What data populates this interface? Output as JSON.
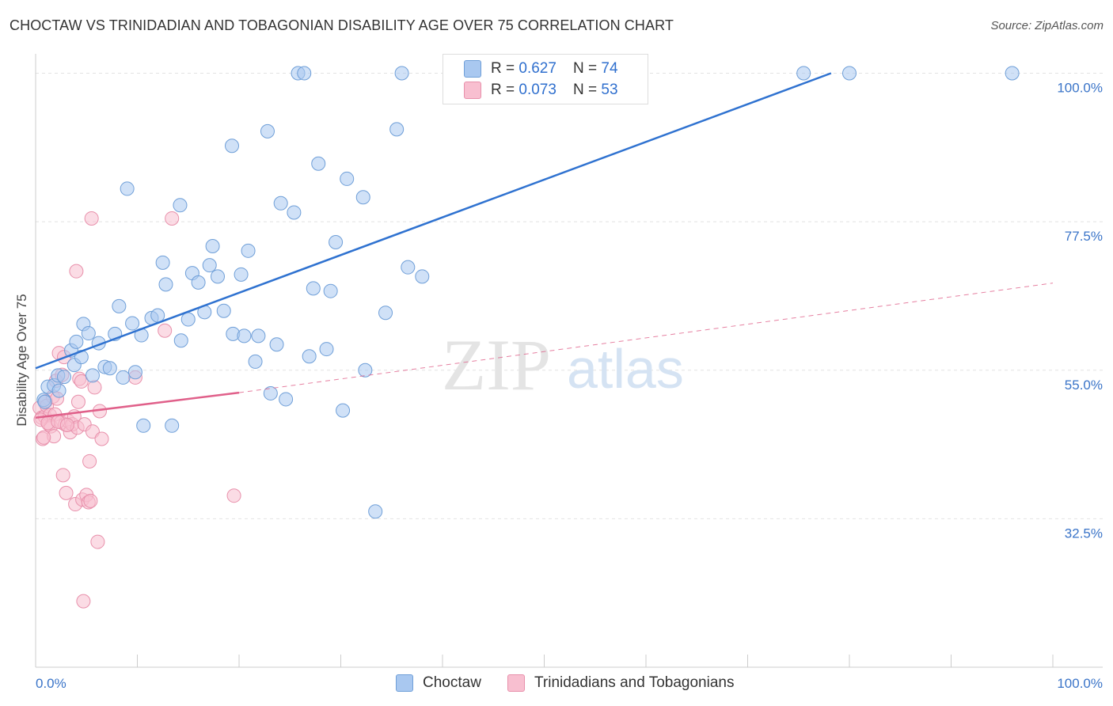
{
  "title": "CHOCTAW VS TRINIDADIAN AND TOBAGONIAN DISABILITY AGE OVER 75 CORRELATION CHART",
  "source": "Source: ZipAtlas.com",
  "watermark": {
    "zip": "ZIP",
    "atlas": "atlas"
  },
  "legend": {
    "choctaw": {
      "r_label": "R = ",
      "r_value": "0.627",
      "n_label": "N = ",
      "n_value": "74"
    },
    "trinidad": {
      "r_label": "R = ",
      "r_value": "0.073",
      "n_label": "N = ",
      "n_value": "53"
    }
  },
  "bottom_legend": {
    "choctaw": "Choctaw",
    "trinidad": "Trinidadians and Tobagonians"
  },
  "colors": {
    "choctaw_fill": "#a9c8f0",
    "choctaw_stroke": "#6f9fd8",
    "choctaw_line": "#2f72d0",
    "trinidad_fill": "#f8bfd0",
    "trinidad_stroke": "#e890ab",
    "trinidad_line": "#e0608a",
    "axis_text": "#3a74c8",
    "grid": "#e2e2e2"
  },
  "chart_data": {
    "type": "scatter",
    "title": "CHOCTAW VS TRINIDADIAN AND TOBAGONIAN DISABILITY AGE OVER 75 CORRELATION CHART",
    "xlabel": "",
    "ylabel": "Disability Age Over 75",
    "xlim": [
      0,
      100
    ],
    "ylim": [
      10,
      101.5
    ],
    "x_tick_labels": [
      "0.0%",
      "100.0%"
    ],
    "y_ticks": [
      32.5,
      55.0,
      77.5,
      100.0
    ],
    "y_tick_labels": [
      "32.5%",
      "55.0%",
      "77.5%",
      "100.0%"
    ],
    "grid": true,
    "series": [
      {
        "name": "Choctaw",
        "points": [
          [
            0.8,
            50.5
          ],
          [
            1.2,
            52.5
          ],
          [
            1.8,
            52.7
          ],
          [
            2.2,
            54.2
          ],
          [
            2.3,
            51.9
          ],
          [
            2.8,
            54.0
          ],
          [
            3.5,
            58.0
          ],
          [
            3.8,
            55.8
          ],
          [
            4.0,
            59.3
          ],
          [
            4.5,
            57.0
          ],
          [
            4.7,
            62.0
          ],
          [
            5.2,
            60.6
          ],
          [
            5.6,
            54.2
          ],
          [
            6.2,
            59.1
          ],
          [
            6.8,
            55.5
          ],
          [
            7.3,
            55.3
          ],
          [
            7.8,
            60.5
          ],
          [
            8.2,
            64.7
          ],
          [
            8.6,
            53.9
          ],
          [
            9.0,
            82.5
          ],
          [
            9.5,
            62.1
          ],
          [
            9.8,
            54.7
          ],
          [
            10.4,
            60.3
          ],
          [
            10.6,
            46.6
          ],
          [
            11.4,
            62.9
          ],
          [
            12.0,
            63.3
          ],
          [
            12.5,
            71.3
          ],
          [
            12.8,
            68.0
          ],
          [
            13.4,
            46.6
          ],
          [
            14.2,
            80.0
          ],
          [
            14.3,
            59.5
          ],
          [
            15.0,
            62.7
          ],
          [
            15.4,
            69.7
          ],
          [
            16.0,
            68.3
          ],
          [
            16.6,
            63.8
          ],
          [
            17.1,
            70.9
          ],
          [
            17.4,
            73.8
          ],
          [
            17.9,
            69.2
          ],
          [
            18.5,
            64.0
          ],
          [
            19.3,
            89.0
          ],
          [
            19.4,
            60.5
          ],
          [
            20.2,
            69.5
          ],
          [
            20.5,
            60.2
          ],
          [
            20.9,
            73.1
          ],
          [
            21.6,
            56.3
          ],
          [
            21.9,
            60.2
          ],
          [
            22.8,
            91.2
          ],
          [
            23.1,
            51.5
          ],
          [
            23.7,
            58.9
          ],
          [
            24.1,
            80.3
          ],
          [
            24.6,
            50.6
          ],
          [
            25.4,
            78.9
          ],
          [
            25.8,
            100.0
          ],
          [
            26.4,
            100.0
          ],
          [
            26.9,
            57.1
          ],
          [
            27.3,
            67.4
          ],
          [
            27.8,
            86.3
          ],
          [
            28.6,
            58.2
          ],
          [
            29.0,
            67.0
          ],
          [
            29.5,
            74.4
          ],
          [
            30.2,
            48.9
          ],
          [
            30.6,
            84.0
          ],
          [
            32.2,
            81.2
          ],
          [
            32.4,
            55.0
          ],
          [
            33.4,
            33.6
          ],
          [
            34.4,
            63.7
          ],
          [
            35.5,
            91.5
          ],
          [
            36.0,
            100.0
          ],
          [
            36.6,
            70.6
          ],
          [
            38.0,
            69.2
          ],
          [
            75.5,
            100.0
          ],
          [
            80.0,
            100.0
          ],
          [
            96.0,
            100.0
          ],
          [
            0.9,
            50.2
          ]
        ],
        "trend": {
          "x0": 0,
          "y0": 55.3,
          "x1": 78.2,
          "y1": 100.0,
          "style": "solid"
        }
      },
      {
        "name": "Trinidadians and Tobagonians",
        "points": [
          [
            0.4,
            49.3
          ],
          [
            0.6,
            47.8
          ],
          [
            0.7,
            44.6
          ],
          [
            0.9,
            48.0
          ],
          [
            1.0,
            50.3
          ],
          [
            1.1,
            49.6
          ],
          [
            1.3,
            46.8
          ],
          [
            1.4,
            48.2
          ],
          [
            1.5,
            46.5
          ],
          [
            1.7,
            51.0
          ],
          [
            1.8,
            45.0
          ],
          [
            1.9,
            48.3
          ],
          [
            2.0,
            53.4
          ],
          [
            2.1,
            50.7
          ],
          [
            2.3,
            57.6
          ],
          [
            2.5,
            47.1
          ],
          [
            2.6,
            54.3
          ],
          [
            2.7,
            39.1
          ],
          [
            2.8,
            57.0
          ],
          [
            2.9,
            46.8
          ],
          [
            3.0,
            36.4
          ],
          [
            3.2,
            47.3
          ],
          [
            3.4,
            45.6
          ],
          [
            3.6,
            46.8
          ],
          [
            3.8,
            48.0
          ],
          [
            3.9,
            34.7
          ],
          [
            4.0,
            70.0
          ],
          [
            4.1,
            46.3
          ],
          [
            4.2,
            50.2
          ],
          [
            4.3,
            53.7
          ],
          [
            4.5,
            53.3
          ],
          [
            4.6,
            35.4
          ],
          [
            4.7,
            20.0
          ],
          [
            4.8,
            46.8
          ],
          [
            5.0,
            36.1
          ],
          [
            5.2,
            35.0
          ],
          [
            5.3,
            41.2
          ],
          [
            5.4,
            35.2
          ],
          [
            5.5,
            78.0
          ],
          [
            5.6,
            45.7
          ],
          [
            5.8,
            52.4
          ],
          [
            6.1,
            29.0
          ],
          [
            6.3,
            48.8
          ],
          [
            6.5,
            44.6
          ],
          [
            9.8,
            53.9
          ],
          [
            12.7,
            61.0
          ],
          [
            13.4,
            78.0
          ],
          [
            19.5,
            36.0
          ],
          [
            0.5,
            47.5
          ],
          [
            1.2,
            47.0
          ],
          [
            2.2,
            47.2
          ],
          [
            0.8,
            44.8
          ],
          [
            3.1,
            46.7
          ]
        ],
        "trend": {
          "x0": 0,
          "y0": 47.8,
          "x1": 20.0,
          "y1": 51.6,
          "style": "solid"
        },
        "trend_extension": {
          "x0": 20.0,
          "y0": 51.6,
          "x1": 100.0,
          "y1": 68.2,
          "style": "dashed"
        }
      }
    ]
  }
}
